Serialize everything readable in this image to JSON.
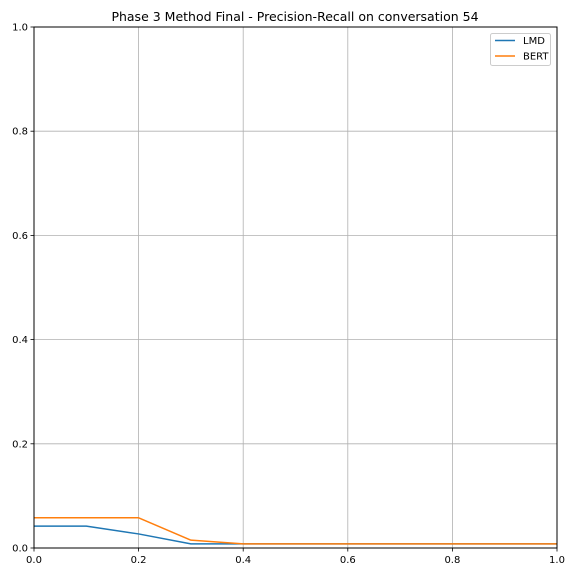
{
  "chart_data": {
    "type": "line",
    "title": "Phase 3 Method Final - Precision-Recall on conversation 54",
    "xlabel": "",
    "ylabel": "",
    "xlim": [
      0.0,
      1.0
    ],
    "ylim": [
      0.0,
      1.0
    ],
    "xticks": [
      "0.0",
      "0.2",
      "0.4",
      "0.6",
      "0.8",
      "1.0"
    ],
    "yticks": [
      "0.0",
      "0.2",
      "0.4",
      "0.6",
      "0.8",
      "1.0"
    ],
    "grid": true,
    "legend": "top-right",
    "x": [
      0.0,
      0.1,
      0.2,
      0.3,
      0.4,
      0.5,
      0.6,
      0.7,
      0.8,
      0.9,
      1.0
    ],
    "series": [
      {
        "name": "LMD",
        "color": "#1f77b4",
        "values": [
          0.042,
          0.042,
          0.027,
          0.008,
          0.008,
          0.008,
          0.008,
          0.008,
          0.008,
          0.008,
          0.008
        ]
      },
      {
        "name": "BERT",
        "color": "#ff7f0e",
        "values": [
          0.058,
          0.058,
          0.058,
          0.015,
          0.008,
          0.008,
          0.008,
          0.008,
          0.008,
          0.008,
          0.008
        ]
      }
    ]
  }
}
